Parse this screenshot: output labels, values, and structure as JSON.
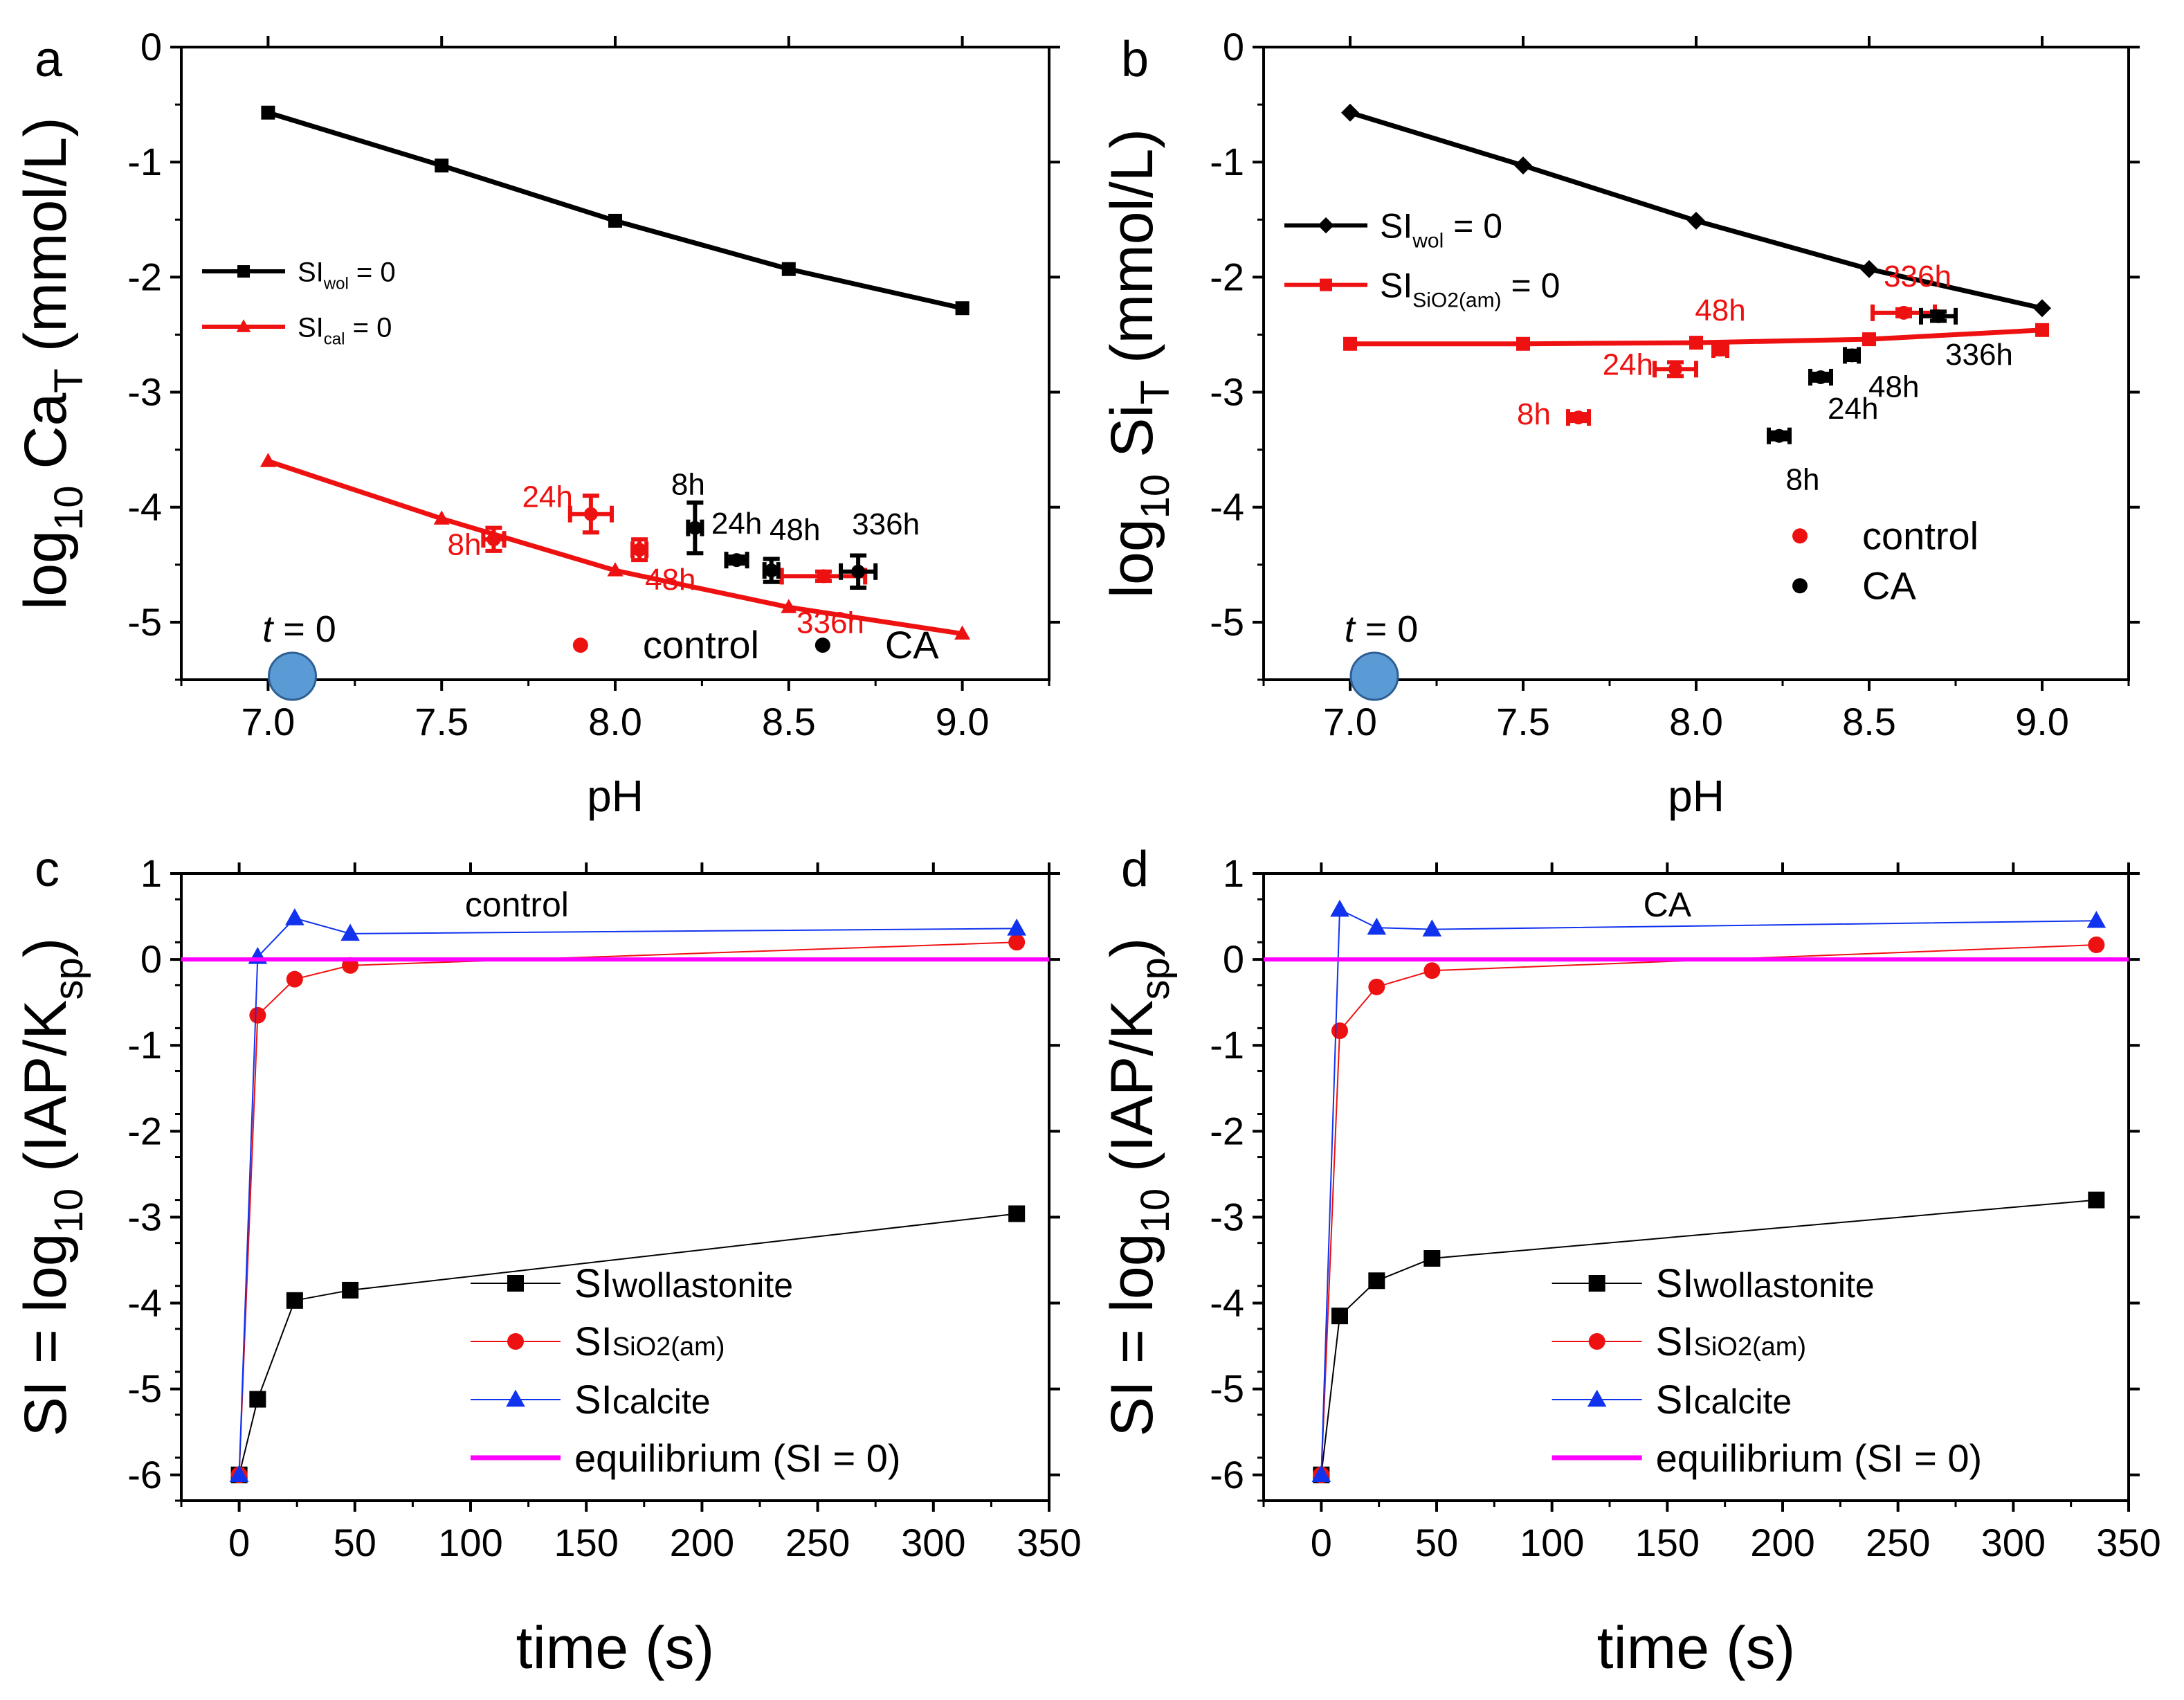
{
  "colors": {
    "black": "#000000",
    "red": "#ee1111",
    "blue": "#1133ee",
    "magenta": "#ff00ff",
    "marker_t0": "#5b9bd5",
    "marker_t0_stroke": "#2f5f92"
  },
  "chart_data": [
    {
      "id": "a",
      "panel_letter": "a",
      "type": "line",
      "xlabel": "pH",
      "ylabel": {
        "main": "log",
        "sub1": "10",
        "mid": " Ca",
        "sub2": "T",
        "tail": " (mmol/L)"
      },
      "xlim": [
        6.75,
        9.25
      ],
      "ylim": [
        -5.5,
        0
      ],
      "xticks": [
        7.0,
        7.5,
        8.0,
        8.5,
        9.0
      ],
      "xtick_labels": [
        "7.0",
        "7.5",
        "8.0",
        "8.5",
        "9.0"
      ],
      "yticks": [
        0,
        -1,
        -2,
        -3,
        -4,
        -5
      ],
      "ytick_labels": [
        "0",
        "-1",
        "-2",
        "-3",
        "-4",
        "-5"
      ],
      "series": [
        {
          "name": "SI_wol = 0",
          "color": "black",
          "marker": "square",
          "x": [
            7.0,
            7.5,
            8.0,
            8.5,
            9.0
          ],
          "y": [
            -0.57,
            -1.03,
            -1.51,
            -1.93,
            -2.27
          ]
        },
        {
          "name": "SI_cal = 0",
          "color": "red",
          "marker": "triangle",
          "x": [
            7.0,
            7.5,
            8.0,
            8.5,
            9.0
          ],
          "y": [
            -3.6,
            -4.1,
            -4.55,
            -4.87,
            -5.1
          ]
        }
      ],
      "legend_lines": [
        {
          "label": "SI",
          "sub": "wol",
          "tail": " = 0",
          "color": "black",
          "marker": "square"
        },
        {
          "label": "SI",
          "sub": "cal",
          "tail": " = 0",
          "color": "red",
          "marker": "triangle"
        }
      ],
      "points": [
        {
          "group": "control",
          "label": "8h",
          "x": 7.65,
          "y": -4.28,
          "xerr": 0.03,
          "yerr": 0.1
        },
        {
          "group": "control",
          "label": "24h",
          "x": 7.93,
          "y": -4.06,
          "xerr": 0.06,
          "yerr": 0.16
        },
        {
          "group": "control",
          "label": "48h",
          "x": 8.07,
          "y": -4.37,
          "xerr": 0.02,
          "yerr": 0.09
        },
        {
          "group": "control",
          "label": "336h",
          "x": 8.6,
          "y": -4.6,
          "xerr": 0.12,
          "yerr": 0.04
        },
        {
          "group": "CA",
          "label": "8h",
          "x": 8.23,
          "y": -4.18,
          "xerr": 0.02,
          "yerr": 0.22
        },
        {
          "group": "CA",
          "label": "24h",
          "x": 8.35,
          "y": -4.46,
          "xerr": 0.03,
          "yerr": 0.03
        },
        {
          "group": "CA",
          "label": "48h",
          "x": 8.45,
          "y": -4.55,
          "xerr": 0.02,
          "yerr": 0.1
        },
        {
          "group": "CA",
          "label": "336h",
          "x": 8.7,
          "y": -4.56,
          "xerr": 0.05,
          "yerr": 0.14
        }
      ],
      "t0": {
        "italic": "t",
        "rest": " = 0",
        "x": 7.07,
        "y": -5.47
      },
      "group_legend": [
        {
          "label": "control",
          "color": "red"
        },
        {
          "label": "CA",
          "color": "black"
        }
      ],
      "legend_position": "left-middle; group legend bottom-center"
    },
    {
      "id": "b",
      "panel_letter": "b",
      "type": "line",
      "xlabel": "pH",
      "ylabel": {
        "main": "log",
        "sub1": "10",
        "mid": " Si",
        "sub2": "T",
        "tail": " (mmol/L)"
      },
      "xlim": [
        6.75,
        9.25
      ],
      "ylim": [
        -5.5,
        0
      ],
      "xticks": [
        7.0,
        7.5,
        8.0,
        8.5,
        9.0
      ],
      "xtick_labels": [
        "7.0",
        "7.5",
        "8.0",
        "8.5",
        "9.0"
      ],
      "yticks": [
        0,
        -1,
        -2,
        -3,
        -4,
        -5
      ],
      "ytick_labels": [
        "0",
        "-1",
        "-2",
        "-3",
        "-4",
        "-5"
      ],
      "series": [
        {
          "name": "SI_wol = 0",
          "color": "black",
          "marker": "diamond",
          "x": [
            7.0,
            7.5,
            8.0,
            8.5,
            9.0
          ],
          "y": [
            -0.57,
            -1.03,
            -1.51,
            -1.93,
            -2.27
          ]
        },
        {
          "name": "SI_SiO2(am) = 0",
          "color": "red",
          "marker": "square",
          "x": [
            7.0,
            7.5,
            8.0,
            8.5,
            9.0
          ],
          "y": [
            -2.58,
            -2.58,
            -2.57,
            -2.54,
            -2.46
          ]
        }
      ],
      "legend_lines": [
        {
          "label": "SI",
          "sub": "wol",
          "tail": " = 0",
          "color": "black",
          "marker": "diamond"
        },
        {
          "label": "SI",
          "sub": "SiO2(am)",
          "tail": " = 0",
          "color": "red",
          "marker": "square"
        }
      ],
      "points": [
        {
          "group": "control",
          "label": "8h",
          "x": 7.66,
          "y": -3.22,
          "xerr": 0.03,
          "yerr": 0.03
        },
        {
          "group": "control",
          "label": "24h",
          "x": 7.94,
          "y": -2.8,
          "xerr": 0.06,
          "yerr": 0.06
        },
        {
          "group": "control",
          "label": "48h",
          "x": 8.07,
          "y": -2.63,
          "xerr": 0.02,
          "yerr": 0.04
        },
        {
          "group": "control",
          "label": "336h",
          "x": 8.6,
          "y": -2.31,
          "xerr": 0.09,
          "yerr": 0.03
        },
        {
          "group": "CA",
          "label": "8h",
          "x": 8.24,
          "y": -3.38,
          "xerr": 0.03,
          "yerr": 0.03
        },
        {
          "group": "CA",
          "label": "24h",
          "x": 8.36,
          "y": -2.87,
          "xerr": 0.03,
          "yerr": 0.03
        },
        {
          "group": "CA",
          "label": "48h",
          "x": 8.45,
          "y": -2.68,
          "xerr": 0.02,
          "yerr": 0.04
        },
        {
          "group": "CA",
          "label": "336h",
          "x": 8.7,
          "y": -2.34,
          "xerr": 0.05,
          "yerr": 0.04
        }
      ],
      "t0": {
        "italic": "t",
        "rest": " = 0",
        "x": 7.07,
        "y": -5.47
      },
      "group_legend": [
        {
          "label": "control",
          "color": "red"
        },
        {
          "label": "CA",
          "color": "black"
        }
      ],
      "legend_position": "top-left; group legend right-middle"
    },
    {
      "id": "c",
      "panel_letter": "c",
      "type": "line",
      "title": "control",
      "xlabel": "time (s)",
      "ylabel": {
        "main": "SI = log",
        "sub1": "10",
        "mid": " (IAP/K",
        "sub2": "sp",
        "tail": ")"
      },
      "xlim": [
        -25,
        350
      ],
      "ylim": [
        -6.3,
        1
      ],
      "xticks": [
        0,
        50,
        100,
        150,
        200,
        250,
        300,
        350
      ],
      "xtick_labels": [
        "0",
        "50",
        "100",
        "150",
        "200",
        "250",
        "300",
        "350"
      ],
      "yticks": [
        1,
        0,
        -1,
        -2,
        -3,
        -4,
        -5,
        -6
      ],
      "ytick_labels": [
        "1",
        "0",
        "-1",
        "-2",
        "-3",
        "-4",
        "-5",
        "-6"
      ],
      "series": [
        {
          "name": "SIwollastonite",
          "color": "black",
          "marker": "square",
          "x": [
            0,
            8,
            24,
            48,
            336
          ],
          "y": [
            -6.0,
            -5.12,
            -3.97,
            -3.85,
            -2.96
          ]
        },
        {
          "name": "SISiO2(am)",
          "color": "red",
          "marker": "circle",
          "x": [
            0,
            8,
            24,
            48,
            336
          ],
          "y": [
            -6.0,
            -0.65,
            -0.23,
            -0.07,
            0.2
          ]
        },
        {
          "name": "SIcalcite",
          "color": "blue",
          "marker": "triangle",
          "x": [
            0,
            8,
            24,
            48,
            336
          ],
          "y": [
            -6.0,
            0.03,
            0.48,
            0.3,
            0.36
          ]
        },
        {
          "name": "equilibrium (SI = 0)",
          "color": "magenta",
          "marker": "none",
          "x": [
            -25,
            350
          ],
          "y": [
            0,
            0
          ]
        }
      ],
      "legend_entries": [
        {
          "label": "SI",
          "rest": "wollastonite",
          "color": "black",
          "marker": "square"
        },
        {
          "label": "SI",
          "rest": "SiO2(am)",
          "color": "red",
          "marker": "circle"
        },
        {
          "label": "SI",
          "rest": "calcite",
          "color": "blue",
          "marker": "triangle"
        },
        {
          "label": "equilibrium (SI = 0)",
          "rest": "",
          "color": "magenta",
          "marker": "none"
        }
      ],
      "legend_position": "bottom-right"
    },
    {
      "id": "d",
      "panel_letter": "d",
      "type": "line",
      "title": "CA",
      "xlabel": "time (s)",
      "ylabel": {
        "main": "SI = log",
        "sub1": "10",
        "mid": " (IAP/K",
        "sub2": "sp",
        "tail": ")"
      },
      "xlim": [
        -25,
        350
      ],
      "ylim": [
        -6.3,
        1
      ],
      "xticks": [
        0,
        50,
        100,
        150,
        200,
        250,
        300,
        350
      ],
      "xtick_labels": [
        "0",
        "50",
        "100",
        "150",
        "200",
        "250",
        "300",
        "350"
      ],
      "yticks": [
        1,
        0,
        -1,
        -2,
        -3,
        -4,
        -5,
        -6
      ],
      "ytick_labels": [
        "1",
        "0",
        "-1",
        "-2",
        "-3",
        "-4",
        "-5",
        "-6"
      ],
      "series": [
        {
          "name": "SIwollastonite",
          "color": "black",
          "marker": "square",
          "x": [
            0,
            8,
            24,
            48,
            336
          ],
          "y": [
            -6.0,
            -4.15,
            -3.74,
            -3.48,
            -2.8
          ]
        },
        {
          "name": "SISiO2(am)",
          "color": "red",
          "marker": "circle",
          "x": [
            0,
            8,
            24,
            48,
            336
          ],
          "y": [
            -6.0,
            -0.83,
            -0.32,
            -0.13,
            0.17
          ]
        },
        {
          "name": "SIcalcite",
          "color": "blue",
          "marker": "triangle",
          "x": [
            0,
            8,
            24,
            48,
            336
          ],
          "y": [
            -6.0,
            0.58,
            0.37,
            0.35,
            0.45
          ]
        },
        {
          "name": "equilibrium (SI = 0)",
          "color": "magenta",
          "marker": "none",
          "x": [
            -25,
            350
          ],
          "y": [
            0,
            0
          ]
        }
      ],
      "legend_entries": [
        {
          "label": "SI",
          "rest": "wollastonite",
          "color": "black",
          "marker": "square"
        },
        {
          "label": "SI",
          "rest": "SiO2(am)",
          "color": "red",
          "marker": "circle"
        },
        {
          "label": "SI",
          "rest": "calcite",
          "color": "blue",
          "marker": "triangle"
        },
        {
          "label": "equilibrium (SI = 0)",
          "rest": "",
          "color": "magenta",
          "marker": "none"
        }
      ],
      "legend_position": "bottom-right"
    }
  ]
}
